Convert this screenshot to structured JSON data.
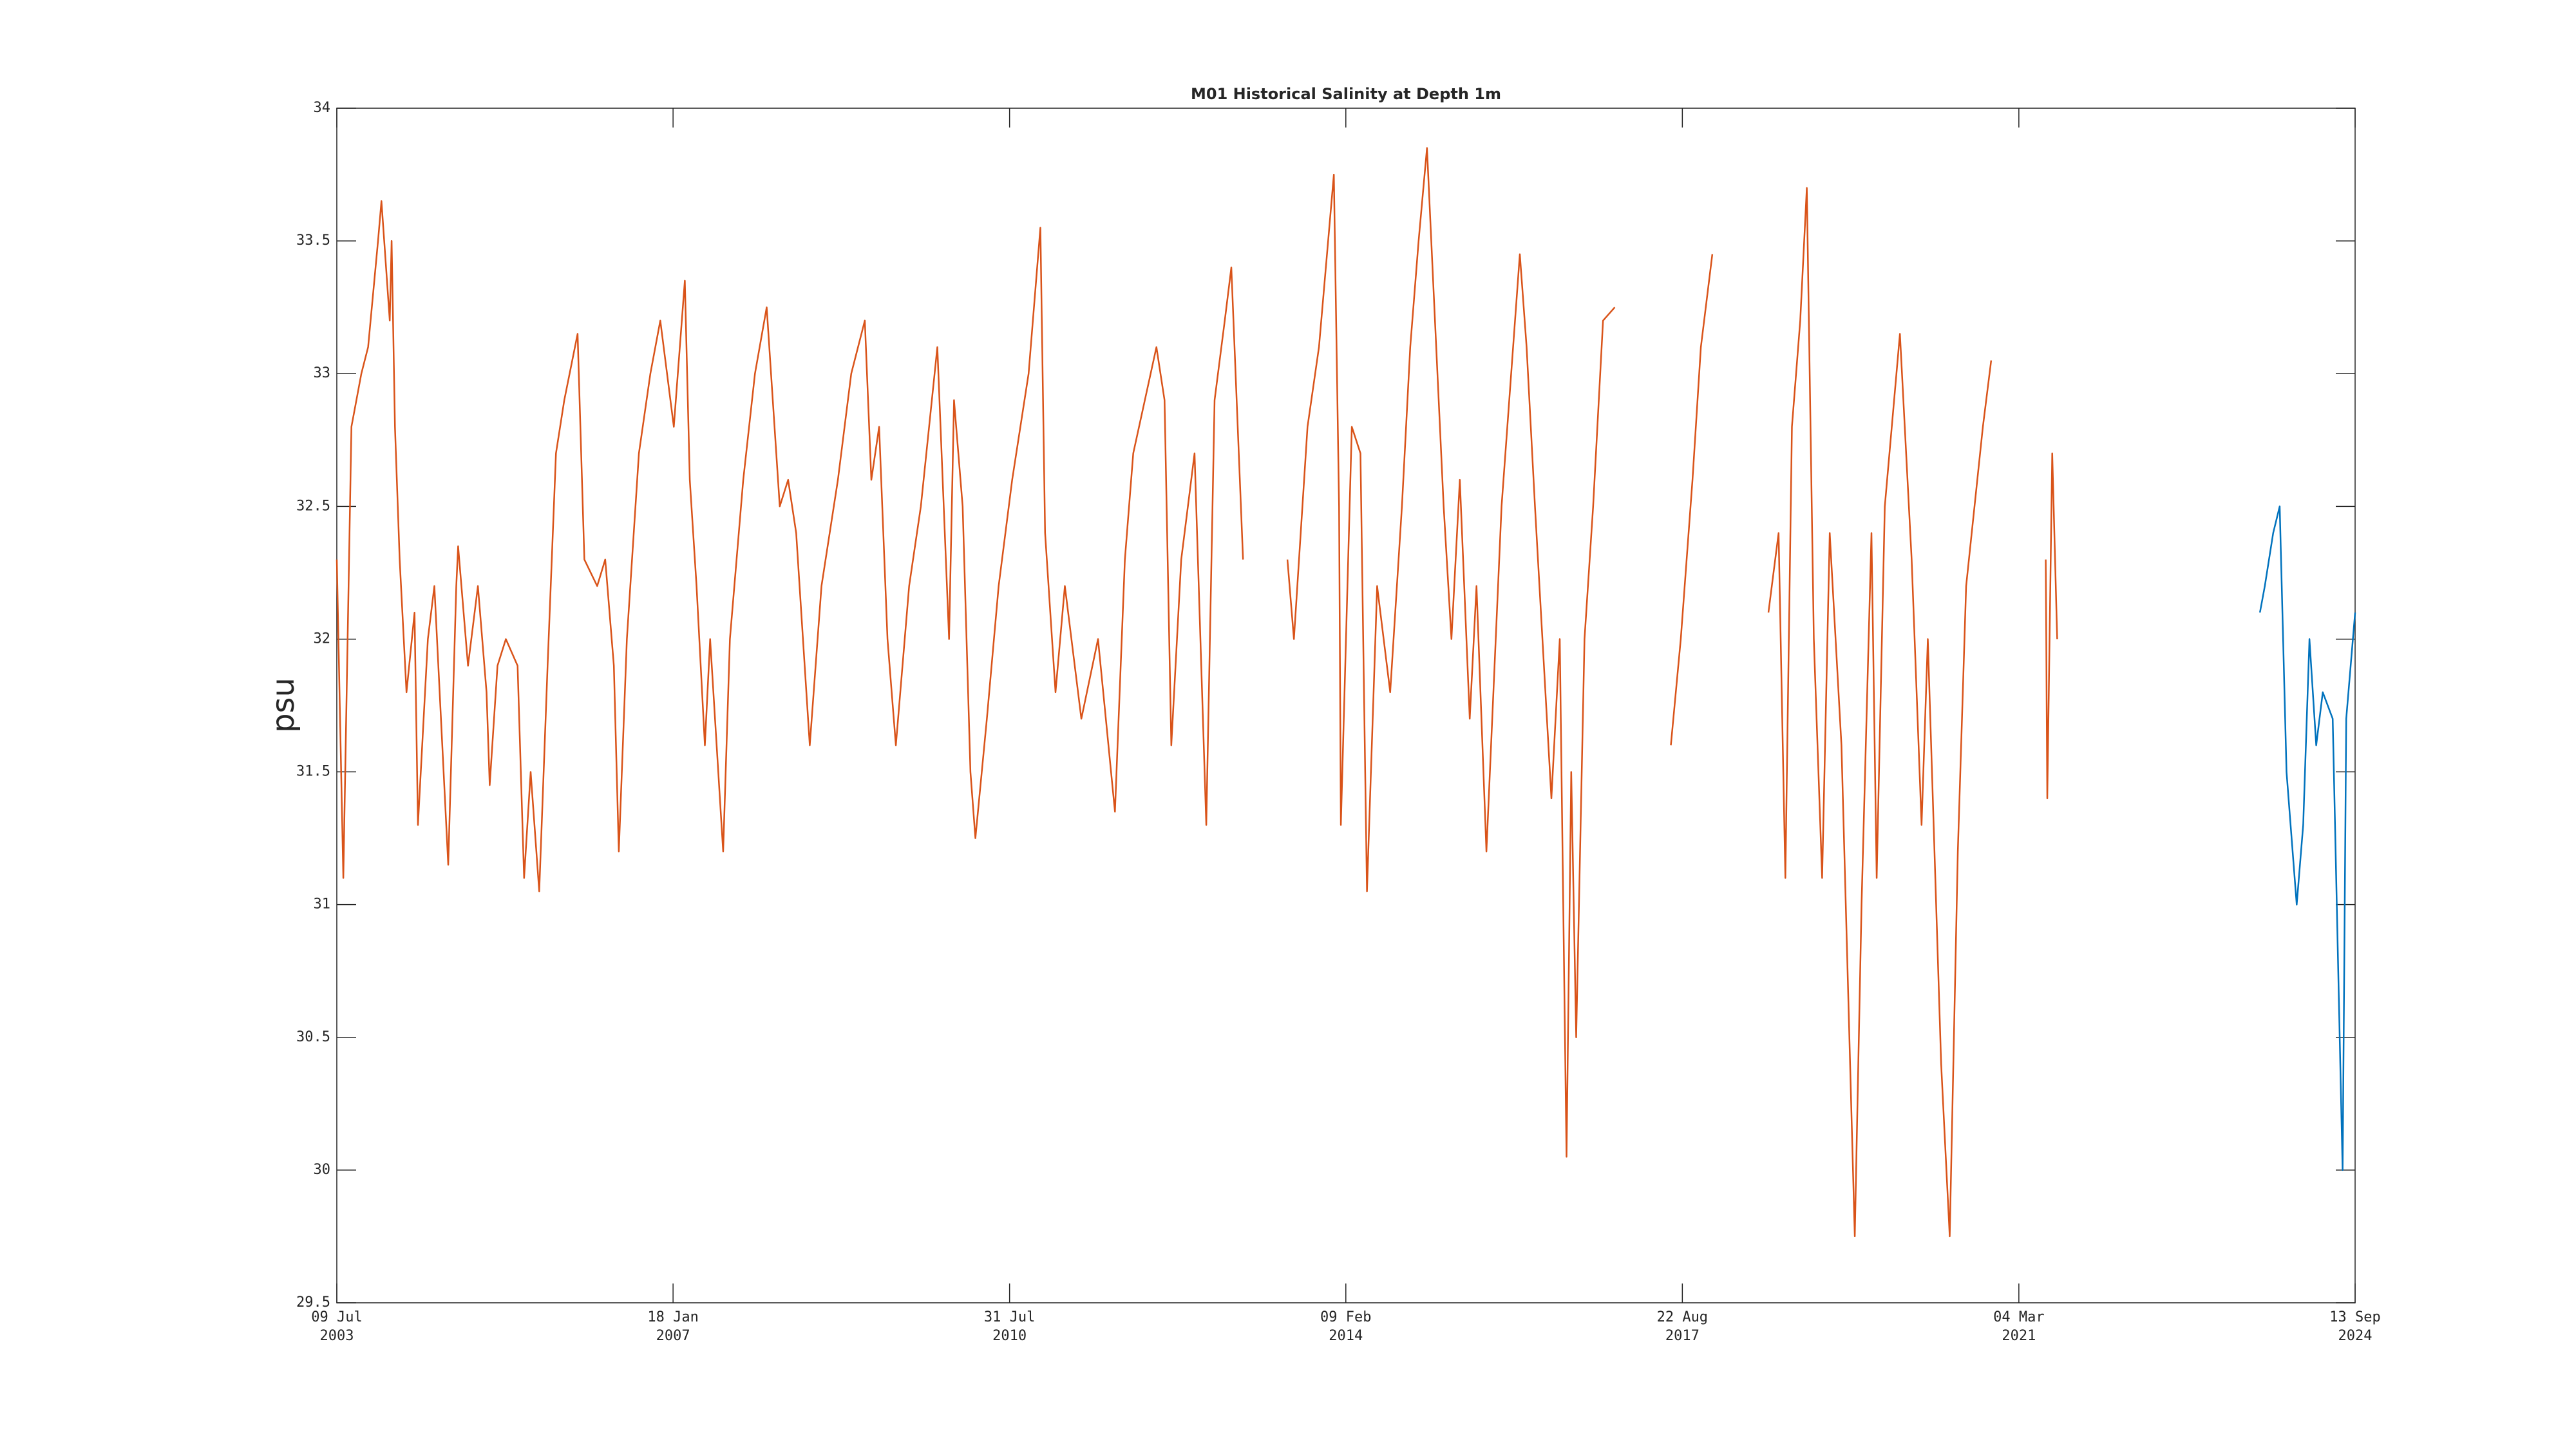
{
  "chart_data": {
    "type": "line",
    "title": "M01 Historical Salinity at Depth 1m",
    "y_label": "psu",
    "xlim": [
      "2003-07-09",
      "2024-09-13"
    ],
    "xticks": [
      {
        "value": "2003-07-09",
        "label": "09 Jul\n2003"
      },
      {
        "value": "2007-01-18",
        "label": "18 Jan\n2007"
      },
      {
        "value": "2010-07-31",
        "label": "31 Jul\n2010"
      },
      {
        "value": "2014-02-09",
        "label": "09 Feb\n2014"
      },
      {
        "value": "2017-08-22",
        "label": "22 Aug\n2017"
      },
      {
        "value": "2021-03-04",
        "label": "04 Mar\n2021"
      },
      {
        "value": "2024-09-13",
        "label": "13 Sep\n2024"
      }
    ],
    "ylim": [
      29.5,
      34
    ],
    "yticks": [
      29.5,
      30,
      30.5,
      31,
      31.5,
      32,
      32.5,
      33,
      33.5,
      34
    ],
    "grid": false,
    "series": [
      {
        "color": "#d95319",
        "x": [
          "2003-07-09",
          "2003-08-03",
          "2003-09-03",
          "2003-10-11",
          "2003-11-06",
          "2003-12-14",
          "2003-12-27",
          "2004-01-28",
          "2004-02-04",
          "2004-02-17",
          "2004-03-06",
          "2004-04-01",
          "2004-05-02",
          "2004-05-15",
          "2004-06-22",
          "2004-07-17",
          "2004-09-08",
          "2004-10-09",
          "2004-10-16",
          "2004-11-23",
          "2004-12-31",
          "2005-02-02",
          "2005-02-14",
          "2005-03-16",
          "2005-04-17",
          "2005-06-01",
          "2005-06-26",
          "2005-07-21",
          "2005-08-23",
          "2005-09-24",
          "2005-10-26",
          "2005-11-27",
          "2006-01-17",
          "2006-02-12",
          "2006-04-02",
          "2006-05-03",
          "2006-06-05",
          "2006-06-24",
          "2006-07-25",
          "2006-09-09",
          "2006-10-23",
          "2006-11-30",
          "2007-01-21",
          "2007-03-04",
          "2007-03-23",
          "2007-04-18",
          "2007-05-20",
          "2007-06-09",
          "2007-07-29",
          "2007-08-24",
          "2007-10-14",
          "2007-11-28",
          "2008-01-12",
          "2008-03-02",
          "2008-04-03",
          "2008-05-04",
          "2008-06-25",
          "2008-08-09",
          "2008-10-11",
          "2008-12-01",
          "2009-01-22",
          "2009-02-16",
          "2009-03-18",
          "2009-04-19",
          "2009-05-21",
          "2009-07-11",
          "2009-08-25",
          "2009-10-27",
          "2009-12-11",
          "2009-12-30",
          "2010-02-01",
          "2010-03-03",
          "2010-03-22",
          "2010-05-05",
          "2010-06-19",
          "2010-08-10",
          "2010-10-12",
          "2010-11-26",
          "2010-12-14",
          "2011-01-23",
          "2011-02-28",
          "2011-05-02",
          "2011-07-05",
          "2011-09-08",
          "2011-10-16",
          "2011-11-17",
          "2012-02-14",
          "2012-03-16",
          "2012-04-11",
          "2012-05-19",
          "2012-07-09",
          "2012-08-23",
          "2012-09-24",
          "2012-11-02",
          "2012-11-27",
          "2013-01-11",
          "2013-04-01",
          "2013-06-30",
          "2013-07-25",
          "2013-09-15",
          "2013-10-29",
          "2013-12-25",
          "2014-01-14",
          "2014-01-21",
          "2014-03-04",
          "2014-04-06",
          "2014-05-01",
          "2014-06-09",
          "2014-07-29",
          "2014-09-12",
          "2014-10-14",
          "2014-11-15",
          "2014-12-17",
          "2015-01-12",
          "2015-02-19",
          "2015-03-21",
          "2015-04-22",
          "2015-05-30",
          "2015-06-25",
          "2015-08-02",
          "2015-09-29",
          "2015-12-08",
          "2016-01-03",
          "2016-02-04",
          "2016-04-07",
          "2016-05-09",
          "2016-06-04",
          "2016-06-22",
          "2016-07-11",
          "2016-08-12",
          "2016-09-14",
          "2016-10-22",
          "2016-12-06",
          "2017-04-01",
          "2017-07-09",
          "2017-08-16",
          "2017-09-30",
          "2017-11-01",
          "2017-12-15",
          "2018-04-01",
          "2018-07-18",
          "2018-08-26",
          "2018-09-21",
          "2018-10-16",
          "2018-11-17",
          "2018-12-12",
          "2019-01-08",
          "2019-02-09",
          "2019-03-10",
          "2019-04-24",
          "2019-06-14",
          "2019-07-10",
          "2019-08-17",
          "2019-09-06",
          "2019-10-07",
          "2019-12-04",
          "2020-01-18",
          "2020-02-25",
          "2020-03-20",
          "2020-05-10",
          "2020-06-12",
          "2020-07-13",
          "2020-08-14",
          "2020-10-17",
          "2020-11-18",
          "2021-03-01",
          "2021-06-15",
          "2021-06-21",
          "2021-07-10",
          "2021-07-29"
        ],
        "values": [
          32.3,
          31.1,
          32.8,
          33.0,
          33.1,
          33.5,
          33.65,
          33.2,
          33.5,
          32.8,
          32.3,
          31.8,
          32.1,
          31.3,
          32.0,
          32.2,
          31.15,
          32.2,
          32.35,
          31.9,
          32.2,
          31.8,
          31.45,
          31.9,
          32.0,
          31.9,
          31.1,
          31.5,
          31.05,
          31.9,
          32.7,
          32.9,
          33.15,
          32.3,
          32.2,
          32.3,
          31.9,
          31.2,
          32.0,
          32.7,
          33.0,
          33.2,
          32.8,
          33.35,
          32.6,
          32.2,
          31.6,
          32.0,
          31.2,
          32.0,
          32.6,
          33.0,
          33.25,
          32.5,
          32.6,
          32.4,
          31.6,
          32.2,
          32.6,
          33.0,
          33.2,
          32.6,
          32.8,
          32.0,
          31.6,
          32.2,
          32.5,
          33.1,
          32.0,
          32.9,
          32.5,
          31.5,
          31.25,
          31.7,
          32.2,
          32.6,
          33.0,
          33.55,
          32.4,
          31.8,
          32.2,
          31.7,
          32.0,
          31.35,
          32.3,
          32.7,
          33.1,
          32.9,
          31.6,
          32.3,
          32.7,
          31.3,
          32.9,
          33.2,
          33.4,
          32.3,
          null,
          32.3,
          32.0,
          32.8,
          33.1,
          33.75,
          32.5,
          31.3,
          32.8,
          32.7,
          31.05,
          32.2,
          31.8,
          32.5,
          33.1,
          33.5,
          33.85,
          33.3,
          32.5,
          32.0,
          32.6,
          31.7,
          32.2,
          31.2,
          32.5,
          33.45,
          33.1,
          32.5,
          31.4,
          32.0,
          30.05,
          31.5,
          30.5,
          32.0,
          32.5,
          33.2,
          33.25,
          null,
          31.6,
          32.0,
          32.6,
          33.1,
          33.45,
          null,
          32.1,
          32.4,
          31.1,
          32.8,
          33.2,
          33.7,
          32.0,
          31.1,
          32.4,
          31.6,
          29.75,
          31.0,
          32.4,
          31.1,
          32.5,
          33.15,
          32.3,
          31.3,
          32.0,
          30.4,
          29.75,
          31.2,
          32.2,
          32.8,
          33.05,
          null,
          32.3,
          31.4,
          32.7,
          32.0
        ]
      },
      {
        "color": "#0072bd",
        "x": [
          "2023-09-14",
          "2023-10-03",
          "2023-11-04",
          "2023-11-29",
          "2023-12-25",
          "2024-02-02",
          "2024-02-27",
          "2024-03-22",
          "2024-04-17",
          "2024-05-12",
          "2024-06-19",
          "2024-07-27",
          "2024-08-10",
          "2024-09-13"
        ],
        "values": [
          32.1,
          32.2,
          32.4,
          32.5,
          31.5,
          31.0,
          31.3,
          32.0,
          31.6,
          31.8,
          31.7,
          30.0,
          31.7,
          32.1
        ]
      }
    ]
  }
}
